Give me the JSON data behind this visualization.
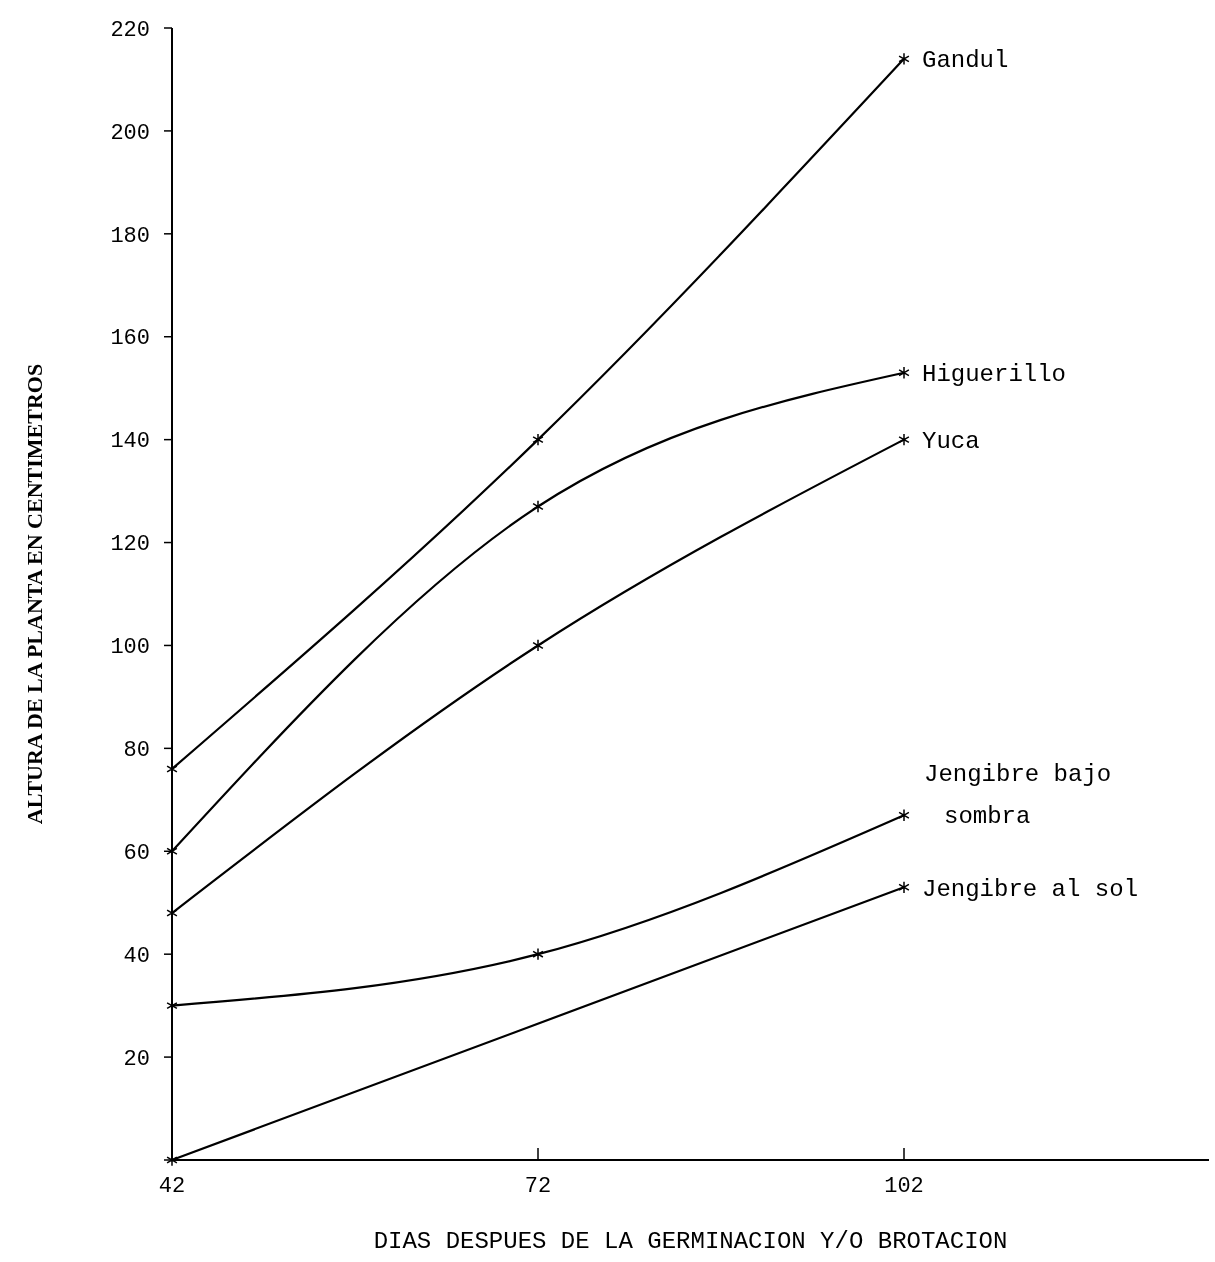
{
  "chart_data": {
    "type": "line",
    "xlabel": "DIAS DESPUES DE LA GERMINACION Y/O BROTACION",
    "ylabel": "ALTURA DE LA PLANTA EN CENTIMETROS",
    "xlim": [
      42,
      127
    ],
    "xticks": [
      42,
      72,
      102
    ],
    "ylim": [
      0,
      220
    ],
    "yticks": [
      {
        "value": 0,
        "label": null
      },
      20,
      40,
      60,
      80,
      100,
      120,
      140,
      160,
      180,
      200,
      220
    ],
    "grid": false,
    "marker": "cross",
    "line_style": "solid",
    "series": [
      {
        "name": "Gandul",
        "color": "#000000",
        "x": [
          42,
          72,
          102
        ],
        "values": [
          76,
          140,
          214
        ]
      },
      {
        "name": "Higuerillo",
        "color": "#000000",
        "x": [
          42,
          72,
          102
        ],
        "values": [
          60,
          127,
          153
        ]
      },
      {
        "name": "Yuca",
        "color": "#000000",
        "x": [
          42,
          72,
          102
        ],
        "values": [
          48,
          100,
          140
        ]
      },
      {
        "name": "Jengibre bajo sombra",
        "color": "#000000",
        "x": [
          42,
          72,
          102
        ],
        "values": [
          30,
          40,
          67
        ]
      },
      {
        "name": "Jengibre al sol",
        "color": "#000000",
        "x": [
          42,
          102
        ],
        "values": [
          0,
          53
        ]
      }
    ]
  }
}
